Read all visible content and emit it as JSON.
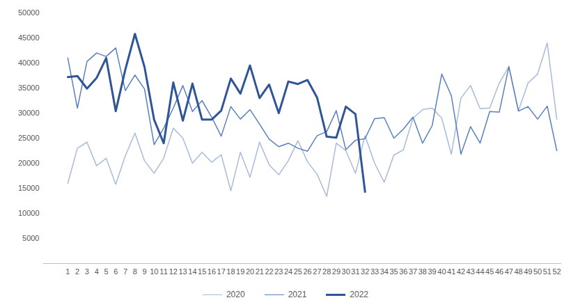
{
  "chart_data": {
    "type": "line",
    "categories": [
      "1",
      "2",
      "3",
      "4",
      "5",
      "6",
      "7",
      "8",
      "9",
      "10",
      "11",
      "12",
      "13",
      "14",
      "15",
      "16",
      "17",
      "18",
      "19",
      "20",
      "21",
      "22",
      "23",
      "24",
      "25",
      "26",
      "27",
      "28",
      "29",
      "30",
      "31",
      "32",
      "33",
      "34",
      "35",
      "36",
      "37",
      "38",
      "39",
      "40",
      "41",
      "42",
      "43",
      "44",
      "45",
      "46",
      "47",
      "48",
      "49",
      "50",
      "51",
      "52"
    ],
    "series": [
      {
        "name": "2020",
        "color": "#a8bbdb",
        "values": [
          16000,
          23000,
          24200,
          19500,
          21000,
          15800,
          21500,
          26000,
          20500,
          18000,
          21000,
          27000,
          25000,
          20000,
          22200,
          20200,
          21700,
          14500,
          22200,
          17200,
          24200,
          19700,
          17700,
          20500,
          24500,
          20300,
          17800,
          13400,
          24000,
          22500,
          18000,
          25500,
          20000,
          16200,
          21600,
          22700,
          29000,
          30700,
          31000,
          29000,
          21800,
          33000,
          35500,
          30900,
          31000,
          36000,
          39300,
          30500,
          36000,
          37800,
          44000,
          28800
        ]
      },
      {
        "name": "2021",
        "color": "#5a7fbd",
        "values": [
          41000,
          31000,
          40300,
          42000,
          41300,
          43000,
          34500,
          37600,
          34800,
          23700,
          27000,
          31000,
          35500,
          30300,
          32500,
          29200,
          25400,
          31300,
          28800,
          30700,
          27800,
          24800,
          23300,
          24000,
          23000,
          22400,
          25500,
          26300,
          30500,
          22700,
          24600,
          24900,
          28900,
          29100,
          25000,
          26800,
          29200,
          24000,
          27500,
          37800,
          33500,
          21800,
          27300,
          24000,
          30300,
          30200,
          39300,
          30400,
          31300,
          28800,
          31400,
          22500
        ]
      },
      {
        "name": "2022",
        "color": "#2f5597",
        "values": [
          37200,
          37400,
          34900,
          37000,
          41000,
          30400,
          38700,
          45800,
          39200,
          28700,
          24000,
          36100,
          28500,
          35900,
          28700,
          28700,
          30500,
          36900,
          33900,
          39500,
          33000,
          35700,
          30000,
          36300,
          35800,
          36600,
          33100,
          25300,
          25100,
          31300,
          29800,
          14300,
          null,
          null,
          null,
          null,
          null,
          null,
          null,
          null,
          null,
          null,
          null,
          null,
          null,
          null,
          null,
          null,
          null,
          null,
          null,
          null
        ]
      }
    ],
    "ylim": [
      0,
      50000
    ],
    "yticks": [
      5000,
      10000,
      15000,
      20000,
      25000,
      30000,
      35000,
      40000,
      45000,
      50000
    ],
    "grid": false,
    "legend": "bottom"
  }
}
